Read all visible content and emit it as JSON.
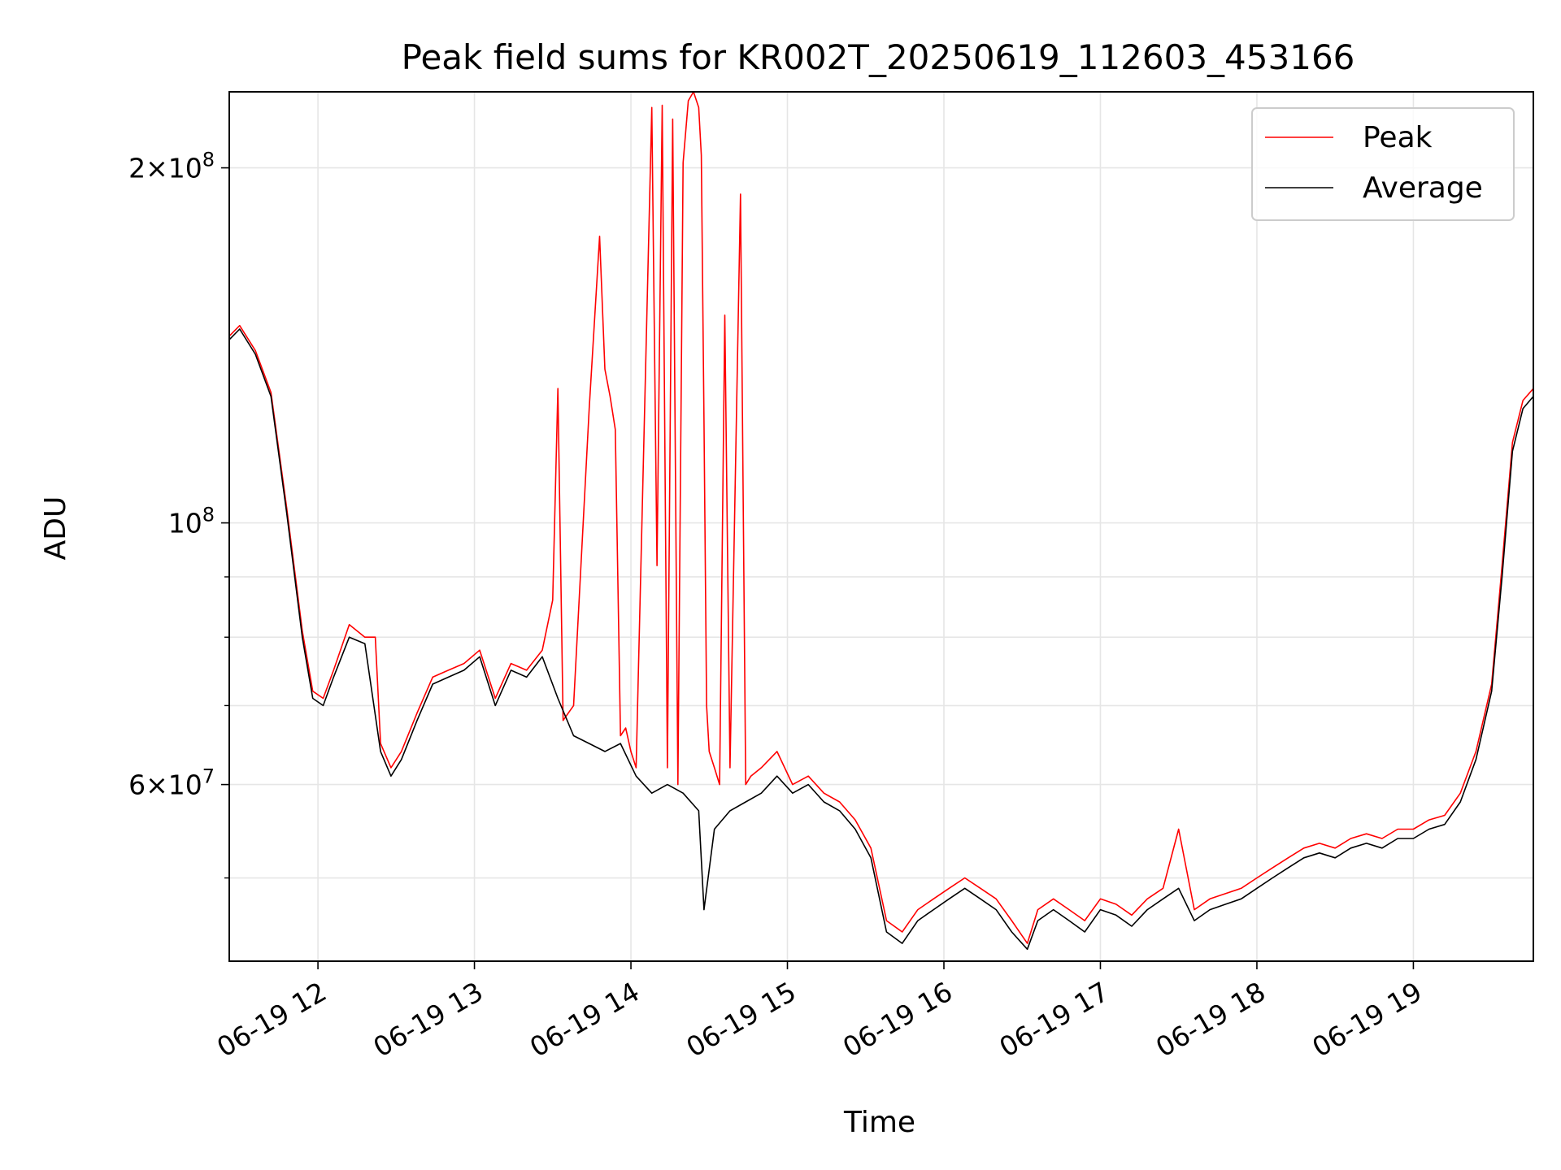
{
  "chart_data": {
    "type": "line",
    "title": "Peak field sums for KR002T_20250619_112603_453166",
    "xlabel": "Time",
    "ylabel": "ADU",
    "yscale": "log",
    "ylim": [
      42500000,
      232000000
    ],
    "xlim": [
      "2025-06-19 11:26",
      "2025-06-19 19:46"
    ],
    "grid": true,
    "legend_position": "upper right",
    "x_tick_labels": [
      "06-19 12",
      "06-19 13",
      "06-19 14",
      "06-19 15",
      "06-19 16",
      "06-19 17",
      "06-19 18",
      "06-19 19"
    ],
    "x_ticks": [
      "2025-06-19 12:00",
      "2025-06-19 13:00",
      "2025-06-19 14:00",
      "2025-06-19 15:00",
      "2025-06-19 16:00",
      "2025-06-19 17:00",
      "2025-06-19 18:00",
      "2025-06-19 19:00"
    ],
    "y_major_ticks": [
      {
        "value": 60000000,
        "mantissa": "6",
        "exp": "7"
      },
      {
        "value": 100000000,
        "mantissa": "",
        "exp": "8"
      },
      {
        "value": 200000000,
        "mantissa": "2",
        "exp": "8"
      }
    ],
    "y_minor_ticks": [
      50000000,
      70000000,
      80000000,
      90000000
    ],
    "series": [
      {
        "name": "Average",
        "color": "#000000",
        "x": [
          "2025-06-19 11:26",
          "2025-06-19 11:30",
          "2025-06-19 11:36",
          "2025-06-19 11:42",
          "2025-06-19 11:48",
          "2025-06-19 11:54",
          "2025-06-19 11:58",
          "2025-06-19 12:02",
          "2025-06-19 12:06",
          "2025-06-19 12:12",
          "2025-06-19 12:18",
          "2025-06-19 12:24",
          "2025-06-19 12:28",
          "2025-06-19 12:32",
          "2025-06-19 12:38",
          "2025-06-19 12:44",
          "2025-06-19 12:50",
          "2025-06-19 12:56",
          "2025-06-19 13:02",
          "2025-06-19 13:08",
          "2025-06-19 13:14",
          "2025-06-19 13:20",
          "2025-06-19 13:26",
          "2025-06-19 13:32",
          "2025-06-19 13:38",
          "2025-06-19 13:44",
          "2025-06-19 13:50",
          "2025-06-19 13:56",
          "2025-06-19 14:02",
          "2025-06-19 14:08",
          "2025-06-19 14:14",
          "2025-06-19 14:20",
          "2025-06-19 14:26",
          "2025-06-19 14:28",
          "2025-06-19 14:32",
          "2025-06-19 14:38",
          "2025-06-19 14:44",
          "2025-06-19 14:50",
          "2025-06-19 14:56",
          "2025-06-19 15:02",
          "2025-06-19 15:08",
          "2025-06-19 15:14",
          "2025-06-19 15:20",
          "2025-06-19 15:26",
          "2025-06-19 15:32",
          "2025-06-19 15:38",
          "2025-06-19 15:44",
          "2025-06-19 15:50",
          "2025-06-19 15:56",
          "2025-06-19 16:02",
          "2025-06-19 16:08",
          "2025-06-19 16:14",
          "2025-06-19 16:20",
          "2025-06-19 16:26",
          "2025-06-19 16:32",
          "2025-06-19 16:36",
          "2025-06-19 16:42",
          "2025-06-19 16:48",
          "2025-06-19 16:54",
          "2025-06-19 17:00",
          "2025-06-19 17:06",
          "2025-06-19 17:12",
          "2025-06-19 17:18",
          "2025-06-19 17:24",
          "2025-06-19 17:30",
          "2025-06-19 17:36",
          "2025-06-19 17:42",
          "2025-06-19 17:48",
          "2025-06-19 17:54",
          "2025-06-19 18:00",
          "2025-06-19 18:06",
          "2025-06-19 18:12",
          "2025-06-19 18:18",
          "2025-06-19 18:24",
          "2025-06-19 18:30",
          "2025-06-19 18:36",
          "2025-06-19 18:42",
          "2025-06-19 18:48",
          "2025-06-19 18:54",
          "2025-06-19 19:00",
          "2025-06-19 19:06",
          "2025-06-19 19:12",
          "2025-06-19 19:18",
          "2025-06-19 19:24",
          "2025-06-19 19:30",
          "2025-06-19 19:34",
          "2025-06-19 19:38",
          "2025-06-19 19:42",
          "2025-06-19 19:46"
        ],
        "values": [
          143000000,
          146000000,
          139000000,
          128000000,
          102000000,
          80000000,
          71000000,
          70000000,
          74000000,
          80000000,
          79000000,
          64000000,
          61000000,
          63000000,
          68000000,
          73000000,
          74000000,
          75000000,
          77000000,
          70000000,
          75000000,
          74000000,
          77000000,
          71000000,
          66000000,
          65000000,
          64000000,
          65000000,
          61000000,
          59000000,
          60000000,
          59000000,
          57000000,
          47000000,
          55000000,
          57000000,
          58000000,
          59000000,
          61000000,
          59000000,
          60000000,
          58000000,
          57000000,
          55000000,
          52000000,
          45000000,
          44000000,
          46000000,
          47000000,
          48000000,
          49000000,
          48000000,
          47000000,
          45000000,
          43500000,
          46000000,
          47000000,
          46000000,
          45000000,
          47000000,
          46500000,
          45500000,
          47000000,
          48000000,
          49000000,
          46000000,
          47000000,
          47500000,
          48000000,
          49000000,
          50000000,
          51000000,
          52000000,
          52500000,
          52000000,
          53000000,
          53500000,
          53000000,
          54000000,
          54000000,
          55000000,
          55500000,
          58000000,
          63000000,
          72000000,
          90000000,
          115000000,
          125000000,
          128000000
        ]
      },
      {
        "name": "Peak",
        "color": "#ff0000",
        "x": [
          "2025-06-19 11:26",
          "2025-06-19 11:30",
          "2025-06-19 11:36",
          "2025-06-19 11:42",
          "2025-06-19 11:48",
          "2025-06-19 11:54",
          "2025-06-19 11:58",
          "2025-06-19 12:02",
          "2025-06-19 12:06",
          "2025-06-19 12:12",
          "2025-06-19 12:18",
          "2025-06-19 12:22",
          "2025-06-19 12:24",
          "2025-06-19 12:28",
          "2025-06-19 12:32",
          "2025-06-19 12:38",
          "2025-06-19 12:44",
          "2025-06-19 12:50",
          "2025-06-19 12:56",
          "2025-06-19 13:02",
          "2025-06-19 13:08",
          "2025-06-19 13:14",
          "2025-06-19 13:20",
          "2025-06-19 13:26",
          "2025-06-19 13:30",
          "2025-06-19 13:32",
          "2025-06-19 13:34",
          "2025-06-19 13:38",
          "2025-06-19 13:44",
          "2025-06-19 13:48",
          "2025-06-19 13:50",
          "2025-06-19 13:52",
          "2025-06-19 13:54",
          "2025-06-19 13:56",
          "2025-06-19 13:58",
          "2025-06-19 14:00",
          "2025-06-19 14:02",
          "2025-06-19 14:08",
          "2025-06-19 14:10",
          "2025-06-19 14:12",
          "2025-06-19 14:14",
          "2025-06-19 14:16",
          "2025-06-19 14:18",
          "2025-06-19 14:20",
          "2025-06-19 14:22",
          "2025-06-19 14:24",
          "2025-06-19 14:26",
          "2025-06-19 14:27",
          "2025-06-19 14:28",
          "2025-06-19 14:29",
          "2025-06-19 14:30",
          "2025-06-19 14:32",
          "2025-06-19 14:34",
          "2025-06-19 14:36",
          "2025-06-19 14:38",
          "2025-06-19 14:42",
          "2025-06-19 14:44",
          "2025-06-19 14:46",
          "2025-06-19 14:50",
          "2025-06-19 14:56",
          "2025-06-19 15:02",
          "2025-06-19 15:08",
          "2025-06-19 15:14",
          "2025-06-19 15:20",
          "2025-06-19 15:26",
          "2025-06-19 15:32",
          "2025-06-19 15:38",
          "2025-06-19 15:44",
          "2025-06-19 15:50",
          "2025-06-19 15:56",
          "2025-06-19 16:02",
          "2025-06-19 16:08",
          "2025-06-19 16:14",
          "2025-06-19 16:20",
          "2025-06-19 16:26",
          "2025-06-19 16:32",
          "2025-06-19 16:36",
          "2025-06-19 16:42",
          "2025-06-19 16:48",
          "2025-06-19 16:54",
          "2025-06-19 17:00",
          "2025-06-19 17:06",
          "2025-06-19 17:12",
          "2025-06-19 17:18",
          "2025-06-19 17:24",
          "2025-06-19 17:30",
          "2025-06-19 17:36",
          "2025-06-19 17:42",
          "2025-06-19 17:48",
          "2025-06-19 17:54",
          "2025-06-19 18:00",
          "2025-06-19 18:06",
          "2025-06-19 18:12",
          "2025-06-19 18:18",
          "2025-06-19 18:24",
          "2025-06-19 18:30",
          "2025-06-19 18:36",
          "2025-06-19 18:42",
          "2025-06-19 18:48",
          "2025-06-19 18:54",
          "2025-06-19 19:00",
          "2025-06-19 19:06",
          "2025-06-19 19:12",
          "2025-06-19 19:18",
          "2025-06-19 19:24",
          "2025-06-19 19:30",
          "2025-06-19 19:34",
          "2025-06-19 19:38",
          "2025-06-19 19:42",
          "2025-06-19 19:46"
        ],
        "values": [
          144000000,
          147000000,
          140000000,
          129000000,
          103000000,
          81000000,
          72000000,
          71000000,
          75000000,
          82000000,
          80000000,
          80000000,
          65000000,
          62000000,
          64000000,
          69000000,
          74000000,
          75000000,
          76000000,
          78000000,
          71000000,
          76000000,
          75000000,
          78000000,
          86000000,
          130000000,
          68000000,
          70000000,
          125000000,
          175000000,
          135000000,
          128000000,
          120000000,
          66000000,
          67000000,
          64000000,
          62000000,
          225000000,
          92000000,
          226000000,
          62000000,
          220000000,
          60000000,
          202000000,
          228000000,
          232000000,
          225000000,
          205000000,
          122000000,
          70000000,
          64000000,
          62000000,
          60000000,
          150000000,
          62000000,
          190000000,
          60000000,
          61000000,
          62000000,
          64000000,
          60000000,
          61000000,
          59000000,
          58000000,
          56000000,
          53000000,
          46000000,
          45000000,
          47000000,
          48000000,
          49000000,
          50000000,
          49000000,
          48000000,
          46000000,
          44000000,
          47000000,
          48000000,
          47000000,
          46000000,
          48000000,
          47500000,
          46500000,
          48000000,
          49000000,
          55000000,
          47000000,
          48000000,
          48500000,
          49000000,
          50000000,
          51000000,
          52000000,
          53000000,
          53500000,
          53000000,
          54000000,
          54500000,
          54000000,
          55000000,
          55000000,
          56000000,
          56500000,
          59000000,
          64000000,
          73000000,
          92000000,
          117000000,
          127000000,
          130000000
        ]
      }
    ]
  },
  "legend": {
    "items": [
      {
        "label": "Peak",
        "color": "#ff0000"
      },
      {
        "label": "Average",
        "color": "#000000"
      }
    ]
  }
}
